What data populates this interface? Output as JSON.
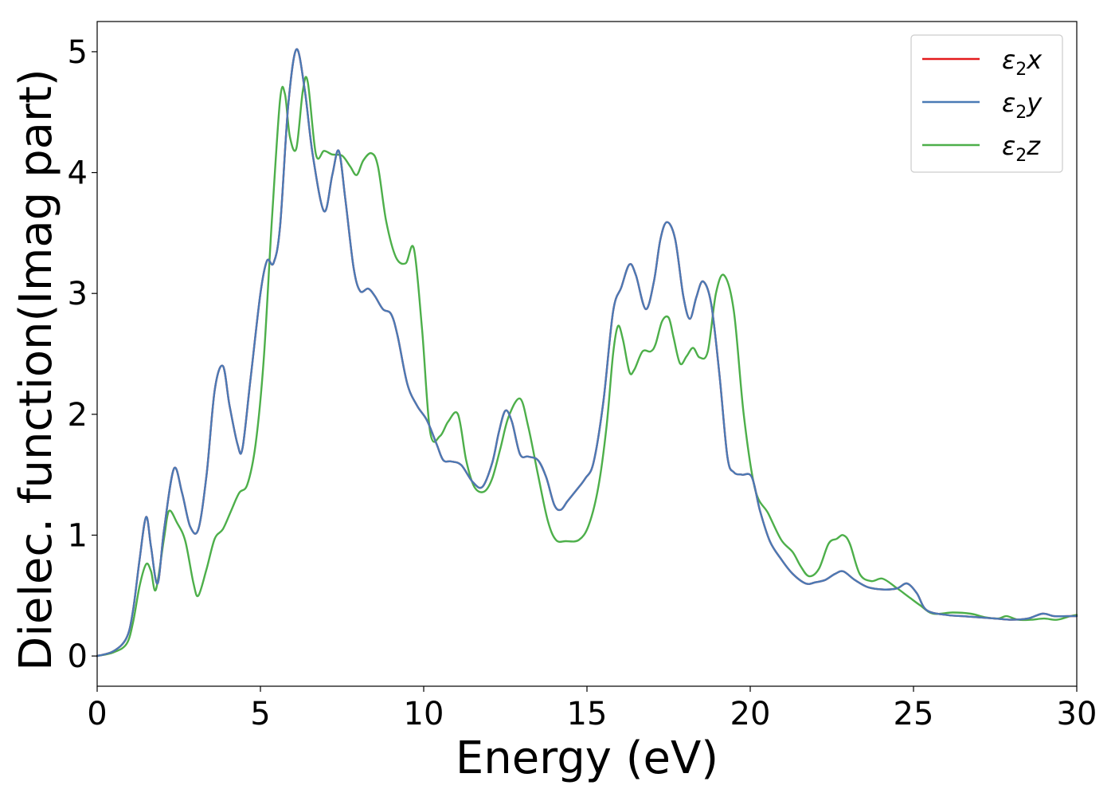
{
  "chart_data": {
    "type": "line",
    "xlabel": "Energy (eV)",
    "ylabel": "Dielec. function(Imag part)",
    "xlim": [
      0,
      30
    ],
    "ylim": [
      -0.25,
      5.25
    ],
    "xticks": [
      0,
      5,
      10,
      15,
      20,
      25,
      30
    ],
    "yticks": [
      0,
      1,
      2,
      3,
      4,
      5
    ],
    "grid": false,
    "legend_position": "top-right",
    "series": [
      {
        "name": "ε2x",
        "legend_base": "ε",
        "legend_sub": "2",
        "legend_suffix": "x",
        "color": "#e41a1c",
        "x": [
          0,
          0.5,
          0.9,
          1.1,
          1.3,
          1.5,
          1.65,
          1.85,
          2.05,
          2.35,
          2.6,
          2.85,
          3.1,
          3.35,
          3.6,
          3.85,
          4.05,
          4.3,
          4.45,
          4.7,
          5.0,
          5.2,
          5.4,
          5.6,
          5.85,
          6.1,
          6.35,
          6.6,
          6.95,
          7.2,
          7.4,
          7.6,
          7.85,
          8.05,
          8.3,
          8.5,
          8.75,
          9.0,
          9.2,
          9.5,
          9.8,
          10.1,
          10.4,
          10.6,
          10.85,
          11.15,
          11.5,
          11.8,
          12.1,
          12.3,
          12.5,
          12.7,
          12.95,
          13.2,
          13.5,
          13.75,
          14.0,
          14.2,
          14.4,
          14.7,
          14.95,
          15.2,
          15.5,
          15.8,
          16.05,
          16.3,
          16.5,
          16.8,
          17.05,
          17.25,
          17.45,
          17.7,
          17.95,
          18.15,
          18.35,
          18.55,
          18.8,
          19.05,
          19.3,
          19.5,
          19.75,
          20.05,
          20.3,
          20.6,
          20.95,
          21.3,
          21.7,
          22.0,
          22.3,
          22.6,
          22.85,
          23.2,
          23.6,
          24.1,
          24.5,
          24.8,
          25.1,
          25.4,
          26.0,
          26.5,
          27.0,
          27.5,
          28.0,
          28.5,
          28.95,
          29.3,
          29.7,
          30.0
        ],
        "values": [
          0,
          0.04,
          0.15,
          0.38,
          0.8,
          1.15,
          0.9,
          0.6,
          1.05,
          1.55,
          1.35,
          1.07,
          1.05,
          1.5,
          2.2,
          2.4,
          2.08,
          1.75,
          1.72,
          2.3,
          3.0,
          3.27,
          3.25,
          3.55,
          4.55,
          5.02,
          4.7,
          4.15,
          3.68,
          3.98,
          4.18,
          3.78,
          3.22,
          3.02,
          3.04,
          2.98,
          2.87,
          2.83,
          2.65,
          2.25,
          2.07,
          1.95,
          1.75,
          1.62,
          1.61,
          1.58,
          1.44,
          1.4,
          1.6,
          1.85,
          2.03,
          1.94,
          1.67,
          1.65,
          1.62,
          1.48,
          1.25,
          1.21,
          1.28,
          1.38,
          1.47,
          1.6,
          2.1,
          2.85,
          3.05,
          3.24,
          3.15,
          2.87,
          3.1,
          3.45,
          3.59,
          3.45,
          2.98,
          2.79,
          2.97,
          3.1,
          2.92,
          2.35,
          1.65,
          1.52,
          1.5,
          1.48,
          1.2,
          0.95,
          0.8,
          0.68,
          0.6,
          0.61,
          0.63,
          0.68,
          0.7,
          0.63,
          0.57,
          0.55,
          0.56,
          0.6,
          0.52,
          0.38,
          0.34,
          0.33,
          0.32,
          0.31,
          0.3,
          0.31,
          0.35,
          0.33,
          0.33,
          0.33
        ]
      },
      {
        "name": "ε2y",
        "legend_base": "ε",
        "legend_sub": "2",
        "legend_suffix": "y",
        "color": "#4a7ab5",
        "x": [
          0,
          0.5,
          0.9,
          1.1,
          1.3,
          1.5,
          1.65,
          1.85,
          2.05,
          2.35,
          2.6,
          2.85,
          3.1,
          3.35,
          3.6,
          3.85,
          4.05,
          4.3,
          4.45,
          4.7,
          5.0,
          5.2,
          5.4,
          5.6,
          5.85,
          6.1,
          6.35,
          6.6,
          6.95,
          7.2,
          7.4,
          7.6,
          7.85,
          8.05,
          8.3,
          8.5,
          8.75,
          9.0,
          9.2,
          9.5,
          9.8,
          10.1,
          10.4,
          10.6,
          10.85,
          11.15,
          11.5,
          11.8,
          12.1,
          12.3,
          12.5,
          12.7,
          12.95,
          13.2,
          13.5,
          13.75,
          14.0,
          14.2,
          14.4,
          14.7,
          14.95,
          15.2,
          15.5,
          15.8,
          16.05,
          16.3,
          16.5,
          16.8,
          17.05,
          17.25,
          17.45,
          17.7,
          17.95,
          18.15,
          18.35,
          18.55,
          18.8,
          19.05,
          19.3,
          19.5,
          19.75,
          20.05,
          20.3,
          20.6,
          20.95,
          21.3,
          21.7,
          22.0,
          22.3,
          22.6,
          22.85,
          23.2,
          23.6,
          24.1,
          24.5,
          24.8,
          25.1,
          25.4,
          26.0,
          26.5,
          27.0,
          27.5,
          28.0,
          28.5,
          28.95,
          29.3,
          29.7,
          30.0
        ],
        "values": [
          0,
          0.04,
          0.15,
          0.38,
          0.8,
          1.15,
          0.9,
          0.6,
          1.05,
          1.55,
          1.35,
          1.07,
          1.05,
          1.5,
          2.2,
          2.4,
          2.08,
          1.75,
          1.72,
          2.3,
          3.0,
          3.27,
          3.25,
          3.55,
          4.55,
          5.02,
          4.7,
          4.15,
          3.68,
          3.98,
          4.18,
          3.78,
          3.22,
          3.02,
          3.04,
          2.98,
          2.87,
          2.83,
          2.65,
          2.25,
          2.07,
          1.95,
          1.75,
          1.62,
          1.61,
          1.58,
          1.44,
          1.4,
          1.6,
          1.85,
          2.03,
          1.94,
          1.67,
          1.65,
          1.62,
          1.48,
          1.25,
          1.21,
          1.28,
          1.38,
          1.47,
          1.6,
          2.1,
          2.85,
          3.05,
          3.24,
          3.15,
          2.87,
          3.1,
          3.45,
          3.59,
          3.45,
          2.98,
          2.79,
          2.97,
          3.1,
          2.92,
          2.35,
          1.65,
          1.52,
          1.5,
          1.48,
          1.2,
          0.95,
          0.8,
          0.68,
          0.6,
          0.61,
          0.63,
          0.68,
          0.7,
          0.63,
          0.57,
          0.55,
          0.56,
          0.6,
          0.52,
          0.38,
          0.34,
          0.33,
          0.32,
          0.31,
          0.3,
          0.31,
          0.35,
          0.33,
          0.33,
          0.33
        ]
      },
      {
        "name": "ε2z",
        "legend_base": "ε",
        "legend_sub": "2",
        "legend_suffix": "z",
        "color": "#4daf4a",
        "x": [
          0,
          0.5,
          0.9,
          1.1,
          1.3,
          1.5,
          1.65,
          1.8,
          2.05,
          2.2,
          2.45,
          2.7,
          2.95,
          3.1,
          3.35,
          3.6,
          3.85,
          4.1,
          4.35,
          4.6,
          4.85,
          5.1,
          5.35,
          5.6,
          5.75,
          5.9,
          6.1,
          6.3,
          6.45,
          6.7,
          6.95,
          7.2,
          7.5,
          7.75,
          7.95,
          8.15,
          8.4,
          8.6,
          8.85,
          9.15,
          9.45,
          9.7,
          9.95,
          10.2,
          10.5,
          10.75,
          11.05,
          11.3,
          11.55,
          11.85,
          12.1,
          12.35,
          12.6,
          12.95,
          13.2,
          13.5,
          13.8,
          14.05,
          14.35,
          14.75,
          15.05,
          15.35,
          15.6,
          15.8,
          15.95,
          16.1,
          16.3,
          16.45,
          16.7,
          16.95,
          17.1,
          17.3,
          17.5,
          17.65,
          17.85,
          18.05,
          18.25,
          18.45,
          18.7,
          18.95,
          19.2,
          19.5,
          19.8,
          20.15,
          20.55,
          20.95,
          21.3,
          21.55,
          21.8,
          22.1,
          22.4,
          22.65,
          22.85,
          23.05,
          23.35,
          23.7,
          24.05,
          24.45,
          24.85,
          25.2,
          25.6,
          26.2,
          26.75,
          27.2,
          27.6,
          27.85,
          28.2,
          28.6,
          29.0,
          29.4,
          29.8,
          30.0
        ],
        "values": [
          0,
          0.03,
          0.1,
          0.28,
          0.58,
          0.76,
          0.7,
          0.55,
          0.98,
          1.2,
          1.1,
          0.95,
          0.6,
          0.5,
          0.72,
          0.97,
          1.05,
          1.2,
          1.35,
          1.42,
          1.75,
          2.45,
          3.6,
          4.6,
          4.65,
          4.3,
          4.2,
          4.68,
          4.75,
          4.15,
          4.18,
          4.15,
          4.14,
          4.05,
          3.98,
          4.1,
          4.16,
          4.05,
          3.6,
          3.3,
          3.25,
          3.37,
          2.7,
          1.85,
          1.82,
          1.94,
          2.0,
          1.62,
          1.4,
          1.36,
          1.47,
          1.72,
          1.98,
          2.13,
          1.9,
          1.5,
          1.12,
          0.96,
          0.95,
          0.96,
          1.08,
          1.4,
          1.9,
          2.5,
          2.73,
          2.62,
          2.35,
          2.37,
          2.52,
          2.52,
          2.58,
          2.77,
          2.8,
          2.64,
          2.42,
          2.48,
          2.55,
          2.47,
          2.52,
          3.0,
          3.15,
          2.85,
          2.0,
          1.38,
          1.18,
          0.96,
          0.86,
          0.74,
          0.66,
          0.72,
          0.93,
          0.97,
          1.0,
          0.93,
          0.68,
          0.62,
          0.64,
          0.57,
          0.49,
          0.42,
          0.35,
          0.36,
          0.35,
          0.32,
          0.31,
          0.33,
          0.3,
          0.3,
          0.31,
          0.3,
          0.33,
          0.34
        ]
      }
    ]
  }
}
